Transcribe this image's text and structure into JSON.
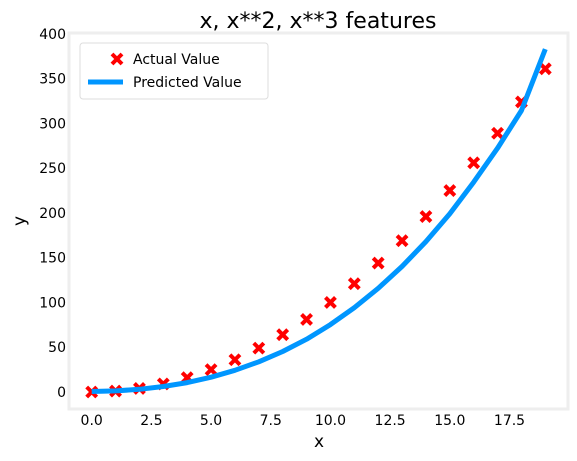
{
  "chart_data": {
    "type": "scatter",
    "title": "x, x**2, x**3 features",
    "xlabel": "x",
    "ylabel": "y",
    "xlim": [
      -0.95,
      19.95
    ],
    "ylim": [
      -19,
      401
    ],
    "xticks": [
      0.0,
      2.5,
      5.0,
      7.5,
      10.0,
      12.5,
      15.0,
      17.5
    ],
    "xtick_labels": [
      "0.0",
      "2.5",
      "5.0",
      "7.5",
      "10.0",
      "12.5",
      "15.0",
      "17.5"
    ],
    "yticks": [
      0,
      50,
      100,
      150,
      200,
      250,
      300,
      350,
      400
    ],
    "ytick_labels": [
      "0",
      "50",
      "100",
      "150",
      "200",
      "250",
      "300",
      "350",
      "400"
    ],
    "grid": false,
    "legend": {
      "placement": "top-left"
    },
    "series": [
      {
        "name": "Actual Value",
        "kind": "scatter",
        "marker": "X",
        "color": "#ff0000",
        "x": [
          0,
          1,
          2,
          3,
          4,
          5,
          6,
          7,
          8,
          9,
          10,
          11,
          12,
          13,
          14,
          15,
          16,
          17,
          18,
          19
        ],
        "y": [
          0,
          1,
          4,
          9,
          16,
          25,
          36,
          49,
          64,
          81,
          100,
          121,
          144,
          169,
          196,
          225,
          256,
          289,
          324,
          361
        ]
      },
      {
        "name": "Predicted Value",
        "kind": "line",
        "color": "#0096ff",
        "x": [
          0,
          1,
          2,
          3,
          4,
          5,
          6,
          7,
          8,
          9,
          10,
          11,
          12,
          13,
          14,
          15,
          16,
          17,
          18,
          19
        ],
        "y": [
          0.5,
          1.2,
          3.0,
          6.1,
          10.5,
          16.5,
          24.2,
          33.7,
          45.2,
          59.0,
          75.3,
          94.2,
          115.8,
          140.3,
          168.0,
          199.1,
          234.5,
          272.4,
          314.3,
          383.0
        ]
      }
    ]
  }
}
